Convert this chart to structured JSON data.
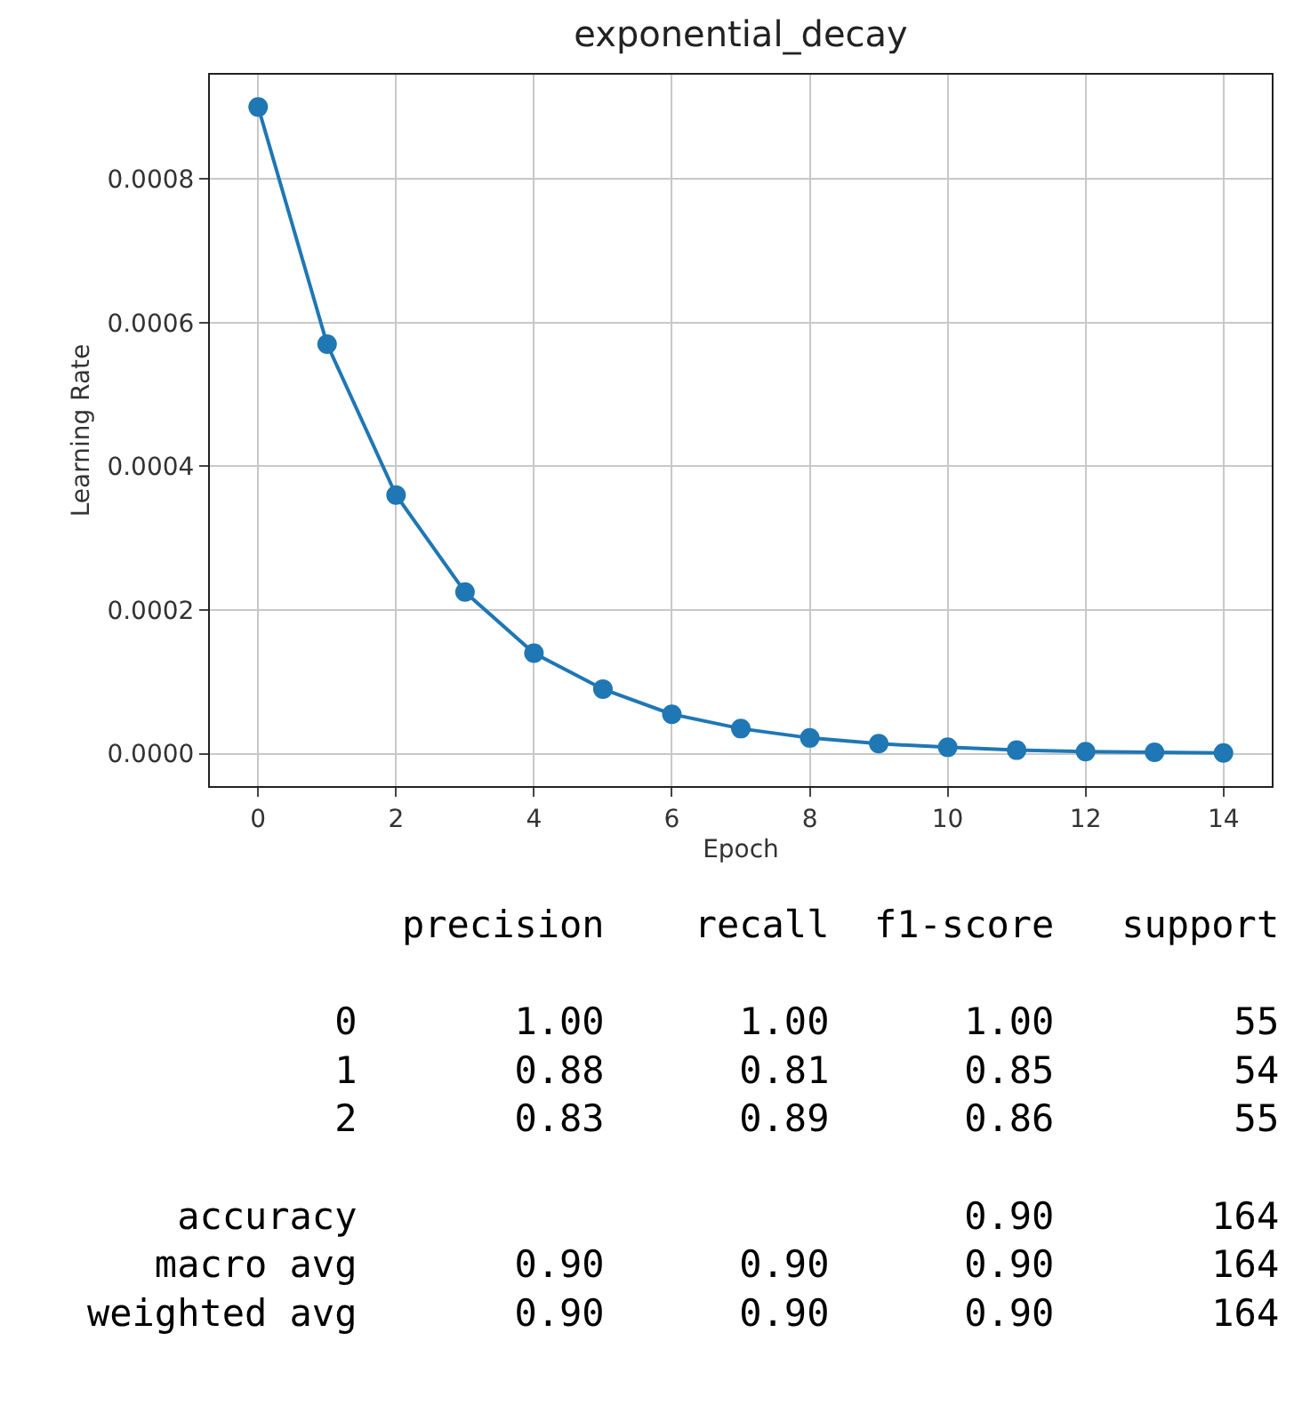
{
  "chart_data": {
    "type": "line",
    "title": "exponential_decay",
    "xlabel": "Epoch",
    "ylabel": "Learning Rate",
    "x": [
      0,
      1,
      2,
      3,
      4,
      5,
      6,
      7,
      8,
      9,
      10,
      11,
      12,
      13,
      14
    ],
    "series": [
      {
        "color": "#1f77b4",
        "values": [
          0.0009,
          0.00057,
          0.00036,
          0.000225,
          0.00014,
          9e-05,
          5.5e-05,
          3.5e-05,
          2.2e-05,
          1.4e-05,
          9e-06,
          5e-06,
          3e-06,
          2e-06,
          1e-06
        ]
      }
    ],
    "xlim": [
      -0.7,
      14.7
    ],
    "ylim": [
      -4.5e-05,
      0.000945
    ],
    "xticks": [
      0,
      2,
      4,
      6,
      8,
      10,
      12,
      14
    ],
    "yticks": [
      {
        "value": 0,
        "label": "0.0000"
      },
      {
        "value": 0.0002,
        "label": "0.0002"
      },
      {
        "value": 0.0004,
        "label": "0.0004"
      },
      {
        "value": 0.0006,
        "label": "0.0006"
      },
      {
        "value": 0.0008,
        "label": "0.0008"
      }
    ],
    "grid": true,
    "marker": "circle",
    "line_style": "solid",
    "legend": false,
    "annotations": [
      "              precision    recall  f1-score   support\n\n           0       1.00      1.00      1.00        55\n           1       0.88      0.81      0.85        54\n           2       0.83      0.89      0.86        55\n\n    accuracy                           0.90       164\n   macro avg       0.90      0.90      0.90       164\nweighted avg       0.90      0.90      0.90       164"
    ]
  }
}
